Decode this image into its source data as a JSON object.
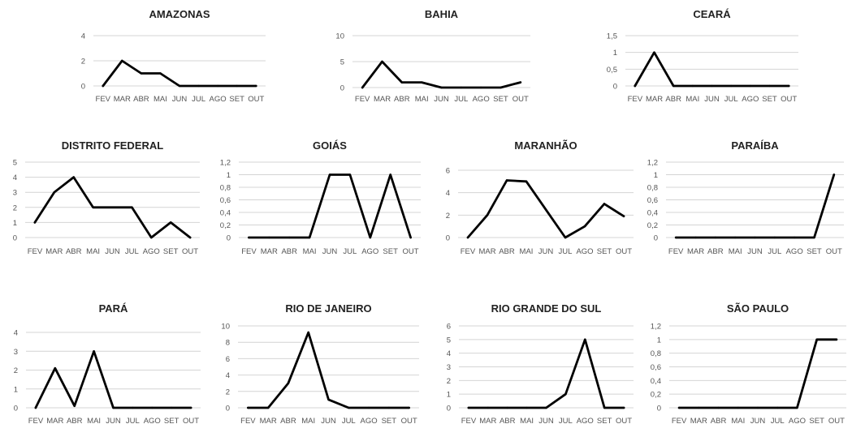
{
  "months": [
    "FEV",
    "MAR",
    "ABR",
    "MAI",
    "JUN",
    "JUL",
    "AGO",
    "SET",
    "OUT"
  ],
  "chart_data": [
    {
      "type": "line",
      "title": "AMAZONAS",
      "categories": [
        "FEV",
        "MAR",
        "ABR",
        "MAI",
        "JUN",
        "JUL",
        "AGO",
        "SET",
        "OUT"
      ],
      "values": [
        0,
        2,
        1,
        1,
        0,
        0,
        0,
        0,
        0
      ],
      "ylim": [
        0,
        4
      ],
      "yticks": [
        0,
        2,
        4
      ],
      "ytick_labels": [
        "0",
        "2",
        "4"
      ],
      "grid": true
    },
    {
      "type": "line",
      "title": "BAHIA",
      "categories": [
        "FEV",
        "MAR",
        "ABR",
        "MAI",
        "JUN",
        "JUL",
        "AGO",
        "SET",
        "OUT"
      ],
      "values": [
        0,
        5,
        1,
        1,
        0,
        0,
        0,
        0,
        1
      ],
      "ylim": [
        0,
        10
      ],
      "yticks": [
        0,
        5,
        10
      ],
      "ytick_labels": [
        "0",
        "5",
        "10"
      ],
      "grid": true
    },
    {
      "type": "line",
      "title": "CEARÁ",
      "categories": [
        "FEV",
        "MAR",
        "ABR",
        "MAI",
        "JUN",
        "JUL",
        "AGO",
        "SET",
        "OUT"
      ],
      "values": [
        0,
        1,
        0,
        0,
        0,
        0,
        0,
        0,
        0
      ],
      "ylim": [
        0,
        1.5
      ],
      "yticks": [
        0,
        0.5,
        1,
        1.5
      ],
      "ytick_labels": [
        "0",
        "0,5",
        "1",
        "1,5"
      ],
      "grid": true
    },
    {
      "type": "line",
      "title": "DISTRITO FEDERAL",
      "categories": [
        "FEV",
        "MAR",
        "ABR",
        "MAI",
        "JUN",
        "JUL",
        "AGO",
        "SET",
        "OUT"
      ],
      "values": [
        1,
        3,
        4,
        2,
        2,
        2,
        0,
        1,
        0
      ],
      "ylim": [
        0,
        5
      ],
      "yticks": [
        0,
        1,
        2,
        3,
        4,
        5
      ],
      "ytick_labels": [
        "0",
        "1",
        "2",
        "3",
        "4",
        "5"
      ],
      "grid": true
    },
    {
      "type": "line",
      "title": "GOIÁS",
      "categories": [
        "FEV",
        "MAR",
        "ABR",
        "MAI",
        "JUN",
        "JUL",
        "AGO",
        "SET",
        "OUT"
      ],
      "values": [
        0,
        0,
        0,
        0,
        1,
        1,
        0,
        1,
        0
      ],
      "ylim": [
        0,
        1.2
      ],
      "yticks": [
        0,
        0.2,
        0.4,
        0.6,
        0.8,
        1,
        1.2
      ],
      "ytick_labels": [
        "0",
        "0,2",
        "0,4",
        "0,6",
        "0,8",
        "1",
        "1,2"
      ],
      "grid": true
    },
    {
      "type": "line",
      "title": "MARANHÃO",
      "categories": [
        "FEV",
        "MAR",
        "ABR",
        "MAI",
        "JUN",
        "JUL",
        "AGO",
        "SET",
        "OUT"
      ],
      "values": [
        0,
        2,
        5.1,
        5,
        2.5,
        0,
        1,
        3,
        1.9
      ],
      "ylim": [
        0,
        6
      ],
      "yticks": [
        0,
        2,
        4,
        6
      ],
      "ytick_labels": [
        "0",
        "2",
        "4",
        "6"
      ],
      "grid": true
    },
    {
      "type": "line",
      "title": "PARAÍBA",
      "categories": [
        "FEV",
        "MAR",
        "ABR",
        "MAI",
        "JUN",
        "JUL",
        "AGO",
        "SET",
        "OUT"
      ],
      "values": [
        0,
        0,
        0,
        0,
        0,
        0,
        0,
        0,
        1
      ],
      "ylim": [
        0,
        1.2
      ],
      "yticks": [
        0,
        0.2,
        0.4,
        0.6,
        0.8,
        1,
        1.2
      ],
      "ytick_labels": [
        "0",
        "0,2",
        "0,4",
        "0,6",
        "0,8",
        "1",
        "1,2"
      ],
      "grid": true
    },
    {
      "type": "line",
      "title": "PARÁ",
      "categories": [
        "FEV",
        "MAR",
        "ABR",
        "MAI",
        "JUN",
        "JUL",
        "AGO",
        "SET",
        "OUT"
      ],
      "values": [
        0,
        2.1,
        0.1,
        3,
        0,
        0,
        0,
        0,
        0
      ],
      "ylim": [
        0,
        4
      ],
      "yticks": [
        0,
        1,
        2,
        3,
        4
      ],
      "ytick_labels": [
        "0",
        "1",
        "2",
        "3",
        "4"
      ],
      "grid": true
    },
    {
      "type": "line",
      "title": "RIO DE JANEIRO",
      "categories": [
        "FEV",
        "MAR",
        "ABR",
        "MAI",
        "JUN",
        "JUL",
        "AGO",
        "SET",
        "OUT"
      ],
      "values": [
        0,
        0,
        3,
        9.2,
        1,
        0,
        0,
        0,
        0
      ],
      "ylim": [
        0,
        10
      ],
      "yticks": [
        0,
        2,
        4,
        6,
        8,
        10
      ],
      "ytick_labels": [
        "0",
        "2",
        "4",
        "6",
        "8",
        "10"
      ],
      "grid": true
    },
    {
      "type": "line",
      "title": "RIO GRANDE DO SUL",
      "categories": [
        "FEV",
        "MAR",
        "ABR",
        "MAI",
        "JUN",
        "JUL",
        "AGO",
        "SET",
        "OUT"
      ],
      "values": [
        0,
        0,
        0,
        0,
        0,
        1,
        5,
        0,
        0
      ],
      "ylim": [
        0,
        6
      ],
      "yticks": [
        0,
        1,
        2,
        3,
        4,
        5,
        6
      ],
      "ytick_labels": [
        "0",
        "1",
        "2",
        "3",
        "4",
        "5",
        "6"
      ],
      "grid": true
    },
    {
      "type": "line",
      "title": "SÃO PAULO",
      "categories": [
        "FEV",
        "MAR",
        "ABR",
        "MAI",
        "JUN",
        "JUL",
        "AGO",
        "SET",
        "OUT"
      ],
      "values": [
        0,
        0,
        0,
        0,
        0,
        0,
        0,
        1,
        1
      ],
      "ylim": [
        0,
        1.2
      ],
      "yticks": [
        0,
        0.2,
        0.4,
        0.6,
        0.8,
        1,
        1.2
      ],
      "ytick_labels": [
        "0",
        "0,2",
        "0,4",
        "0,6",
        "0,8",
        "1",
        "1,2"
      ],
      "grid": true
    }
  ]
}
